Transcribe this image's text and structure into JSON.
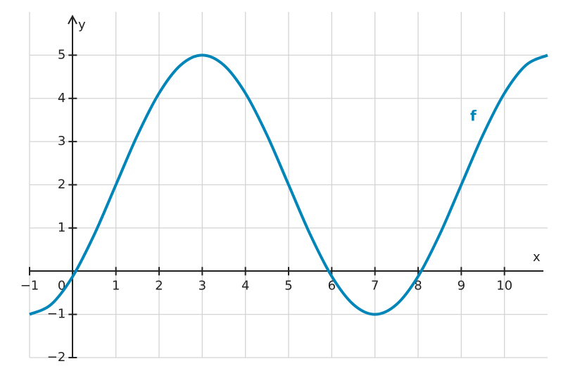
{
  "chart_data": {
    "type": "line",
    "x_label": "x",
    "y_label": "y",
    "x": [
      -1,
      -0.5,
      0,
      0.5,
      1,
      1.5,
      2,
      2.5,
      3,
      3.5,
      4,
      4.5,
      5,
      5.5,
      6,
      6.5,
      7,
      7.5,
      8,
      8.5,
      9,
      9.5,
      10,
      10.5,
      11
    ],
    "series": [
      {
        "name": "f",
        "color": "#0085b8",
        "values": [
          -1,
          -0.77,
          -0.12,
          0.85,
          2,
          3.15,
          4.12,
          4.77,
          5,
          4.77,
          4.12,
          3.15,
          2,
          0.85,
          -0.12,
          -0.77,
          -1,
          -0.77,
          -0.12,
          0.85,
          2,
          3.15,
          4.12,
          4.77,
          5
        ]
      }
    ],
    "xlim": [
      -1,
      11
    ],
    "ylim": [
      -2,
      6
    ],
    "xticks": [
      {
        "value": -1,
        "label": "−1"
      },
      0,
      1,
      2,
      3,
      4,
      5,
      6,
      7,
      8,
      9,
      10
    ],
    "yticks": [
      {
        "value": -2,
        "label": "−2"
      },
      {
        "value": -1,
        "label": "−1"
      },
      1,
      2,
      3,
      4,
      5
    ],
    "grid": true
  }
}
